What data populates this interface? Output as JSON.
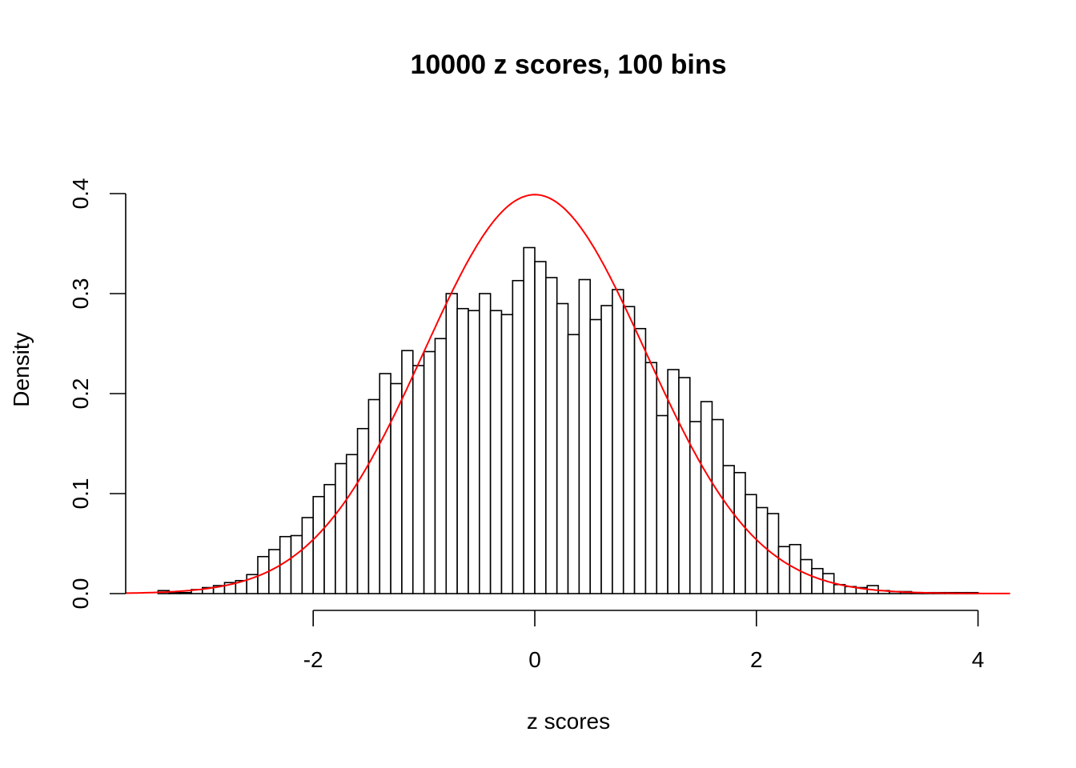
{
  "chart_data": {
    "type": "bar",
    "title": "10000 z scores, 100 bins",
    "xlabel": "z scores",
    "ylabel": "Density",
    "xlim": [
      -3.69,
      4.29
    ],
    "ylim": [
      0,
      0.4
    ],
    "x_ticks": [
      "-2",
      "0",
      "2",
      "4"
    ],
    "y_ticks": [
      "0.0",
      "0.1",
      "0.2",
      "0.3",
      "0.4"
    ],
    "bin_start": -3.4,
    "bin_width": 0.1,
    "values": [
      0.003,
      0.001,
      0.001,
      0.004,
      0.006,
      0.008,
      0.011,
      0.013,
      0.019,
      0.037,
      0.044,
      0.057,
      0.058,
      0.076,
      0.097,
      0.109,
      0.13,
      0.139,
      0.165,
      0.194,
      0.22,
      0.21,
      0.243,
      0.228,
      0.242,
      0.255,
      0.3,
      0.285,
      0.283,
      0.3,
      0.283,
      0.279,
      0.313,
      0.346,
      0.332,
      0.316,
      0.29,
      0.259,
      0.314,
      0.274,
      0.288,
      0.304,
      0.287,
      0.265,
      0.231,
      0.178,
      0.224,
      0.216,
      0.172,
      0.192,
      0.174,
      0.128,
      0.121,
      0.099,
      0.086,
      0.08,
      0.047,
      0.049,
      0.034,
      0.025,
      0.02,
      0.009,
      0.007,
      0.006,
      0.008,
      0.003,
      0.002,
      0.002,
      0.001,
      0.001,
      0.001,
      0.001,
      0.001,
      0.001
    ],
    "overlay": {
      "type": "line",
      "function": "standard normal density",
      "mean": 0,
      "sd": 1
    },
    "bar_fill": "#ffffff",
    "bar_stroke": "#000000",
    "curve_color": "#ff0000",
    "grid": false,
    "legend": "none"
  }
}
